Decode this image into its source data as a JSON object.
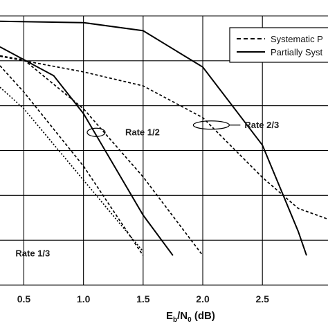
{
  "chart_data": {
    "type": "line",
    "xlabel": {
      "main": "E",
      "sub1": "b",
      "mid": "/N",
      "sub2": "0",
      "tail": " (dB)"
    },
    "x_ticks": [
      "0.5",
      "1.0",
      "1.5",
      "2.0",
      "2.5"
    ],
    "x_tick_values": [
      0.5,
      1.0,
      1.5,
      2.0,
      2.5
    ],
    "xlim": [
      0.3,
      3.05
    ],
    "y_grid_count": 6,
    "grid": true,
    "legend": {
      "placement": "top-right",
      "entries": [
        {
          "label": "Systematic P",
          "style": "dashed"
        },
        {
          "label": "Partially Syst",
          "style": "solid"
        }
      ]
    },
    "annotations": [
      {
        "text": "Rate 1/2",
        "x": 1.35,
        "yf": 0.43
      },
      {
        "text": "Rate 2/3",
        "x": 2.35,
        "yf": 0.403
      },
      {
        "text": "Rate 1/3",
        "x": 0.43,
        "yf": 0.88
      }
    ],
    "series": [
      {
        "group": "Rate 2/3",
        "style": "solid",
        "points": [
          [
            0.3,
            0.02
          ],
          [
            1.0,
            0.025
          ],
          [
            1.5,
            0.055
          ],
          [
            2.0,
            0.19
          ],
          [
            2.5,
            0.48
          ],
          [
            2.8,
            0.8
          ],
          [
            2.87,
            0.89
          ]
        ]
      },
      {
        "group": "Rate 2/3",
        "style": "dashed",
        "points": [
          [
            0.3,
            0.15
          ],
          [
            1.0,
            0.208
          ],
          [
            1.5,
            0.26
          ],
          [
            2.0,
            0.378
          ],
          [
            2.5,
            0.6
          ],
          [
            2.8,
            0.715
          ],
          [
            3.05,
            0.755
          ]
        ]
      },
      {
        "group": "Rate 1/2",
        "style": "solid",
        "points": [
          [
            0.3,
            0.115
          ],
          [
            0.75,
            0.222
          ],
          [
            1.0,
            0.363
          ],
          [
            1.5,
            0.74
          ],
          [
            1.75,
            0.89
          ]
        ]
      },
      {
        "group": "Rate 1/2",
        "style": "dashed",
        "points": [
          [
            0.3,
            0.148
          ],
          [
            0.5,
            0.163
          ],
          [
            1.0,
            0.345
          ],
          [
            1.5,
            0.598
          ],
          [
            2.0,
            0.89
          ]
        ]
      },
      {
        "group": "Rate 1/3",
        "style": "dashed",
        "points": [
          [
            0.3,
            0.185
          ],
          [
            0.5,
            0.283
          ],
          [
            1.0,
            0.558
          ],
          [
            1.5,
            0.89
          ]
        ]
      },
      {
        "group": "Rate 1/3",
        "style": "dotted",
        "points": [
          [
            0.3,
            0.265
          ],
          [
            0.5,
            0.345
          ],
          [
            1.0,
            0.61
          ],
          [
            1.5,
            0.875
          ]
        ]
      }
    ]
  }
}
